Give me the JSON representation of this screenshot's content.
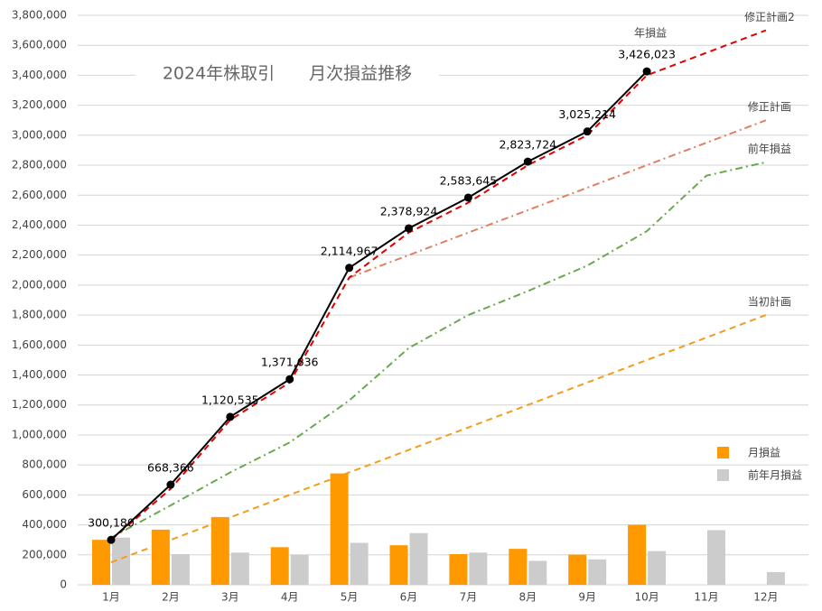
{
  "chart_data": {
    "type": "combo",
    "title": "2024年株取引　　月次損益推移",
    "categories": [
      "1月",
      "2月",
      "3月",
      "4月",
      "5月",
      "6月",
      "7月",
      "8月",
      "9月",
      "10月",
      "11月",
      "12月"
    ],
    "ylim": [
      0,
      3800000
    ],
    "yticks": [
      0,
      {
        "value": 200000,
        "label": "200,000"
      },
      {
        "value": 400000,
        "label": "400,000"
      },
      {
        "value": 600000,
        "label": "600,000"
      },
      {
        "value": 800000,
        "label": "800,000"
      },
      {
        "value": 1000000,
        "label": "1,000,000"
      },
      {
        "value": 1200000,
        "label": "1,200,000"
      },
      {
        "value": 1400000,
        "label": "1,400,000"
      },
      {
        "value": 1600000,
        "label": "1,600,000"
      },
      {
        "value": 1800000,
        "label": "1,800,000"
      },
      {
        "value": 2000000,
        "label": "2,000,000"
      },
      {
        "value": 2200000,
        "label": "2,200,000"
      },
      {
        "value": 2400000,
        "label": "2,400,000"
      },
      {
        "value": 2600000,
        "label": "2,600,000"
      },
      {
        "value": 2800000,
        "label": "2,800,000"
      },
      {
        "value": 3000000,
        "label": "3,000,000"
      },
      {
        "value": 3200000,
        "label": "3,200,000"
      },
      {
        "value": 3400000,
        "label": "3,400,000"
      },
      {
        "value": 3600000,
        "label": "3,600,000"
      },
      {
        "value": 3800000,
        "label": "3,800,000"
      }
    ],
    "grid": true,
    "legend": "right",
    "series": [
      {
        "name": "月損益",
        "type": "bar",
        "color": "#ff9900",
        "values": [
          300180,
          368186,
          452169,
          251101,
          743331,
          263957,
          204721,
          240079,
          201490,
          400809,
          null,
          null
        ]
      },
      {
        "name": "前年月損益",
        "type": "bar",
        "color": "#cccccc",
        "values": [
          315000,
          205000,
          215000,
          200000,
          280000,
          345000,
          215000,
          160000,
          170000,
          225000,
          365000,
          85000
        ]
      },
      {
        "name": "当初計画",
        "type": "line",
        "style": "dashed",
        "color": "#f29d1c",
        "values": [
          150000,
          300000,
          450000,
          600000,
          750000,
          900000,
          1050000,
          1200000,
          1350000,
          1500000,
          1650000,
          1800000
        ]
      },
      {
        "name": "前年損益",
        "type": "line",
        "style": "dashdot",
        "color": "#6aa84f",
        "values": [
          315000,
          530000,
          750000,
          950000,
          1230000,
          1580000,
          1800000,
          1960000,
          2130000,
          2360000,
          2730000,
          2820000
        ]
      },
      {
        "name": "修正計画",
        "type": "line",
        "style": "dashdot",
        "color": "#e08060",
        "values": [
          null,
          null,
          null,
          null,
          2050000,
          2200000,
          2350000,
          2500000,
          2650000,
          2800000,
          2950000,
          3100000
        ]
      },
      {
        "name": "修正計画2",
        "type": "line",
        "style": "dashed",
        "color": "#e00000",
        "values": [
          300000,
          640000,
          1100000,
          1350000,
          2050000,
          2350000,
          2550000,
          2800000,
          3000000,
          3400000,
          3550000,
          3700000
        ]
      },
      {
        "name": "年損益",
        "type": "line",
        "style": "solid",
        "color": "#000000",
        "markers": true,
        "values": [
          300180,
          668366,
          1120535,
          1371636,
          2114967,
          2378924,
          2583645,
          2823724,
          3025214,
          3426023,
          null,
          null
        ],
        "value_labels": [
          "300,180",
          "668,366",
          "1,120,535",
          "1,371,636",
          "2,114,967",
          "2,378,924",
          "2,583,645",
          "2,823,724",
          "3,025,214",
          "3,426,023",
          null,
          null
        ]
      }
    ]
  }
}
